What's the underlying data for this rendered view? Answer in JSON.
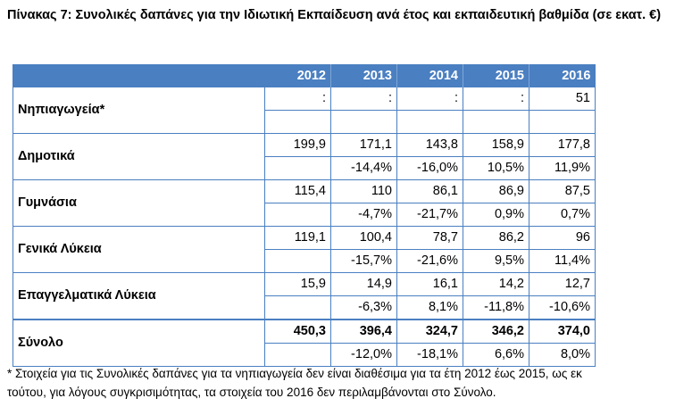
{
  "title": "Πίνακας 7: Συνολικές δαπάνες για την Ιδιωτική Εκπαίδευση ανά έτος και εκπαιδευτική βαθμίδα (σε εκατ. €)",
  "years": [
    "2012",
    "2013",
    "2014",
    "2015",
    "2016"
  ],
  "rows": [
    {
      "label": "Νηπιαγωγεία*",
      "values": [
        ":",
        ":",
        ":",
        ":",
        "51"
      ],
      "changes": [
        "",
        "",
        "",
        "",
        ""
      ]
    },
    {
      "label": "Δημοτικά",
      "values": [
        "199,9",
        "171,1",
        "143,8",
        "158,9",
        "177,8"
      ],
      "changes": [
        "",
        "-14,4%",
        "-16,0%",
        "10,5%",
        "11,9%"
      ]
    },
    {
      "label": "Γυμνάσια",
      "values": [
        "115,4",
        "110",
        "86,1",
        "86,9",
        "87,5"
      ],
      "changes": [
        "",
        "-4,7%",
        "-21,7%",
        "0,9%",
        "0,7%"
      ]
    },
    {
      "label": "Γενικά Λύκεια",
      "values": [
        "119,1",
        "100,4",
        "78,7",
        "86,2",
        "96"
      ],
      "changes": [
        "",
        "-15,7%",
        "-21,6%",
        "9,5%",
        "11,4%"
      ]
    },
    {
      "label": "Επαγγελματικά Λύκεια",
      "values": [
        "15,9",
        "14,9",
        "16,1",
        "14,2",
        "12,7"
      ],
      "changes": [
        "",
        "-6,3%",
        "8,1%",
        "-11,8%",
        "-10,6%"
      ]
    },
    {
      "label": "Σύνολο",
      "values": [
        "450,3",
        "396,4",
        "324,7",
        "346,2",
        "374,0"
      ],
      "changes": [
        "",
        "-12,0%",
        "-18,1%",
        "6,6%",
        "8,0%"
      ]
    }
  ],
  "footnote_line1": "* Στοιχεία για τις Συνολικές δαπάνες για τα νηπιαγωγεία δεν είναι διαθέσιμα για τα έτη 2012 έως 2015, ως εκ",
  "footnote_line2": "τούτου, για λόγους συγκρισιμότητας, τα στοιχεία του 2016 δεν περιλαμβάνονται στο Σύνολο.",
  "colors": {
    "header_bg": "#4a7fc1",
    "border": "#4a7fc1"
  }
}
